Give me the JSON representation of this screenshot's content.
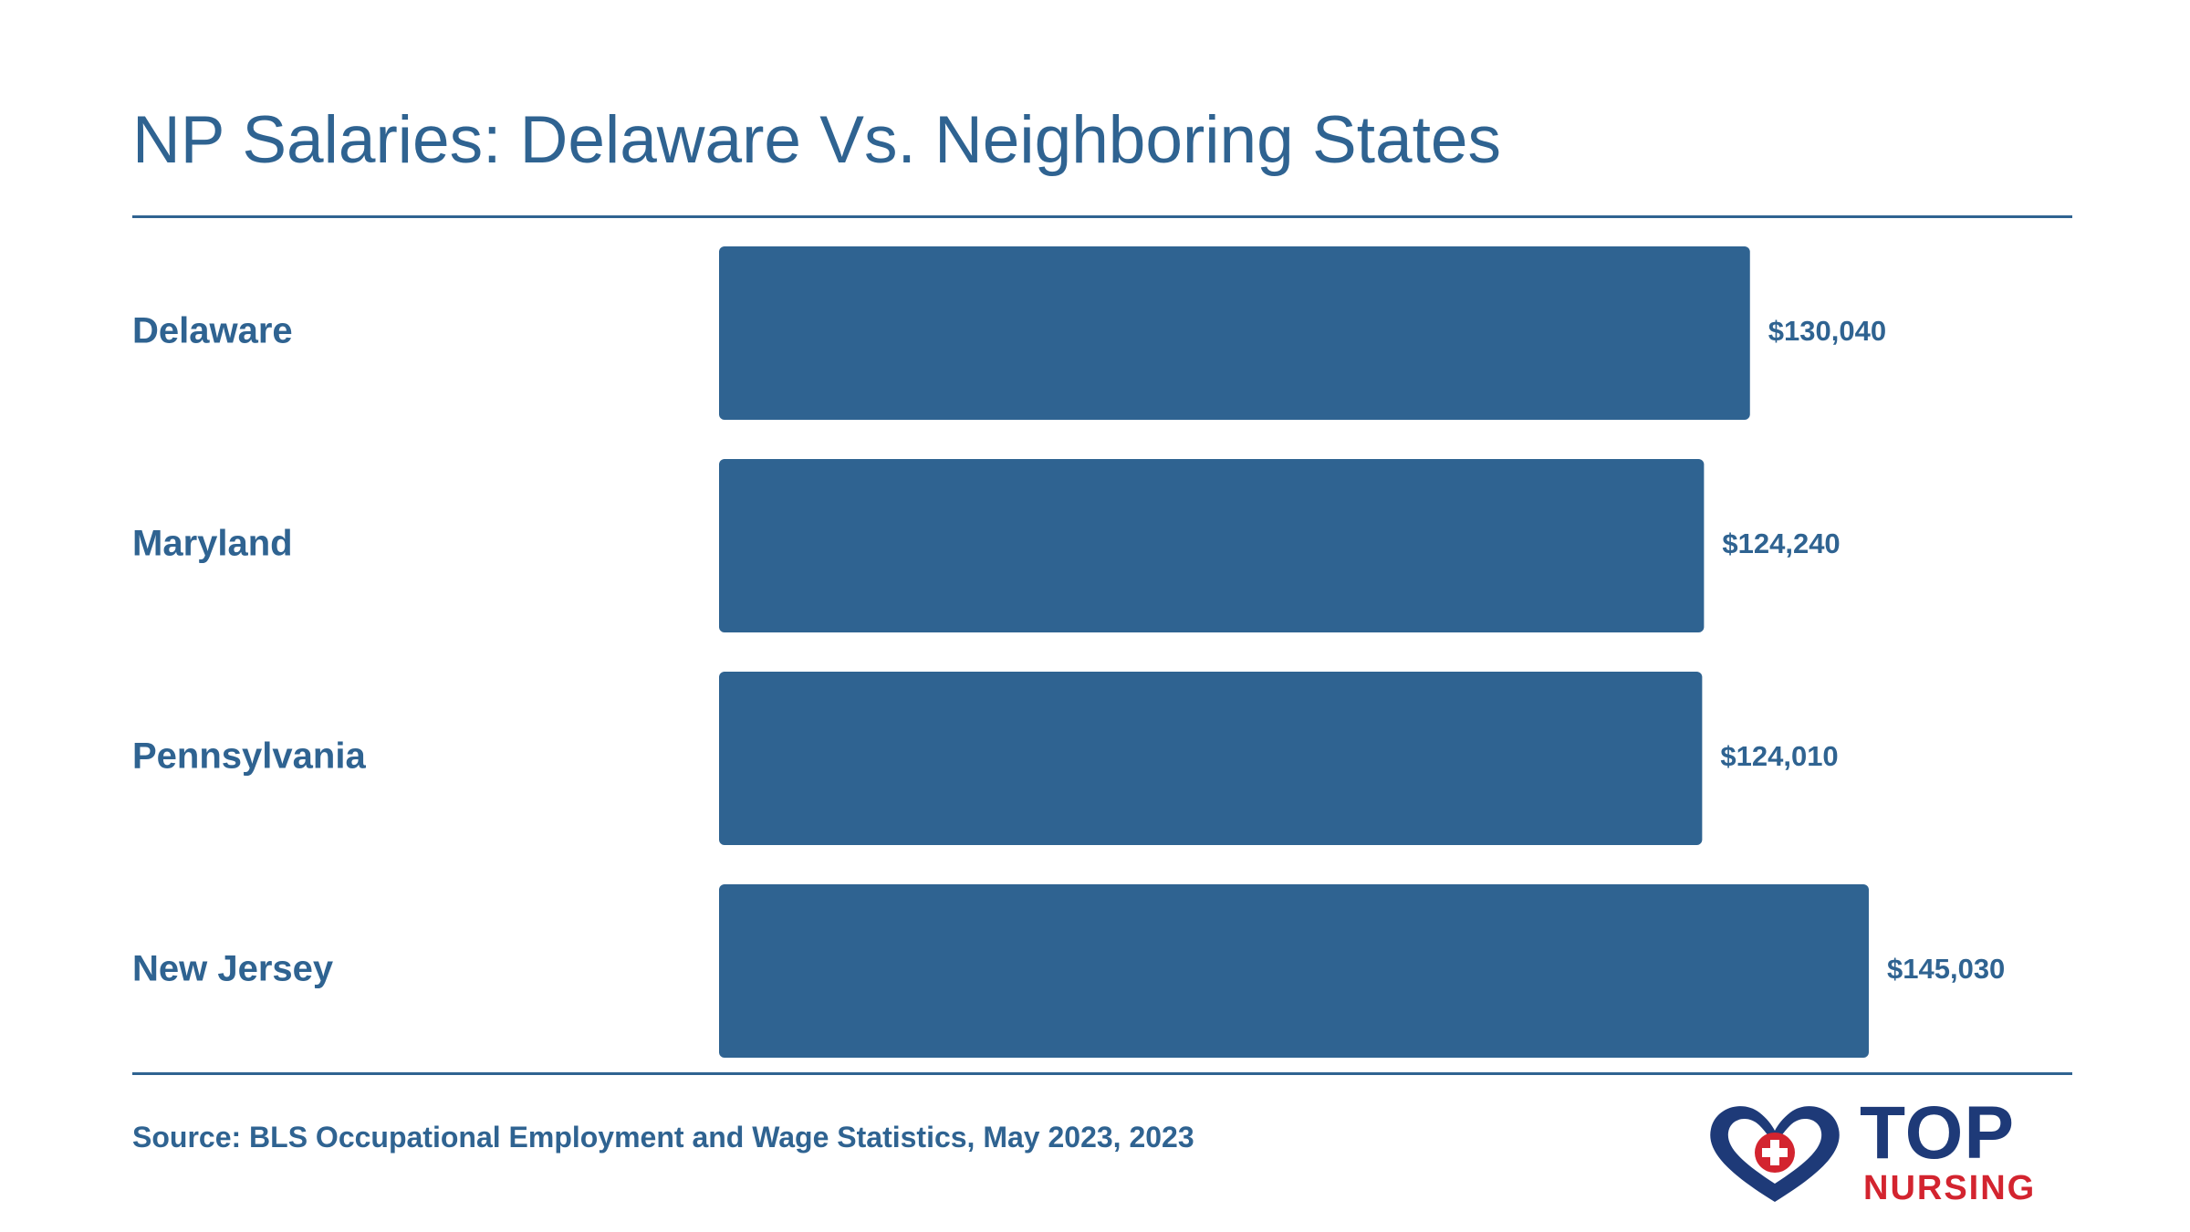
{
  "title": "NP Salaries: Delaware Vs. Neighboring States",
  "source": "Source: BLS Occupational Employment and Wage Statistics, May 2023, 2023",
  "logo": {
    "word_top": "TOP",
    "word_bottom": "NURSING",
    "icon": "heart-cross-icon",
    "colors": {
      "heart": "#1e3a78",
      "cross": "#d3242f"
    }
  },
  "colors": {
    "bar": "#2f6391",
    "text": "#2f6391",
    "rule": "#2f6391"
  },
  "chart_data": {
    "type": "bar",
    "orientation": "horizontal",
    "categories": [
      "Delaware",
      "Maryland",
      "Pennsylvania",
      "New Jersey"
    ],
    "values": [
      130040,
      124240,
      124010,
      145030
    ],
    "value_labels": [
      "$130,040",
      "$124,240",
      "$124,010",
      "$145,030"
    ],
    "xlim": [
      0,
      145030
    ],
    "grid": false,
    "legend": "none"
  }
}
